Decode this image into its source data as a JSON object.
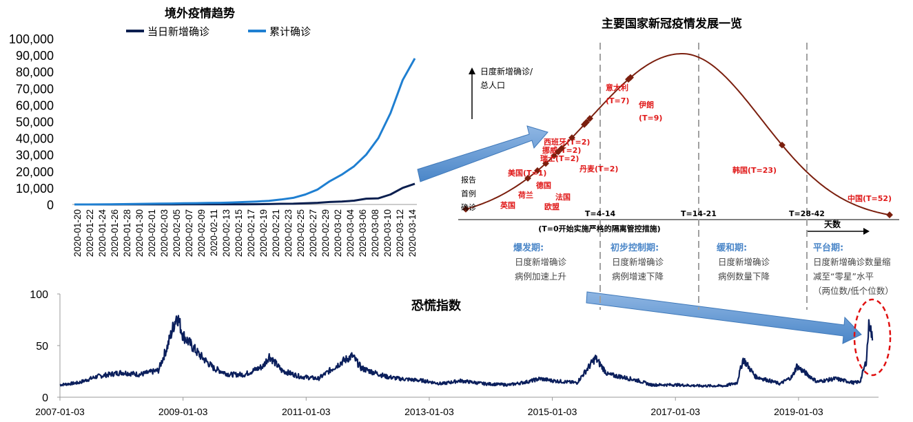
{
  "chart_data": [
    {
      "type": "line",
      "title": "境外疫情趋势",
      "legend_position": "top",
      "ylim": [
        0,
        100000
      ],
      "yticks": [
        "100,000",
        "90,000",
        "80,000",
        "70,000",
        "60,000",
        "50,000",
        "40,000",
        "30,000",
        "20,000",
        "10,000",
        "0"
      ],
      "xticks": [
        "2020-01-20",
        "2020-01-22",
        "2020-01-24",
        "2020-01-26",
        "2020-01-28",
        "2020-01-30",
        "2020-02-01",
        "2020-02-03",
        "2020-02-05",
        "2020-02-07",
        "2020-02-09",
        "2020-02-11",
        "2020-02-13",
        "2020-02-15",
        "2020-02-17",
        "2020-02-19",
        "2020-02-21",
        "2020-02-23",
        "2020-02-25",
        "2020-02-27",
        "2020-02-29",
        "2020-03-02",
        "2020-03-04",
        "2020-03-06",
        "2020-03-08",
        "2020-03-10",
        "2020-03-12",
        "2020-03-14"
      ],
      "x": [
        "2020-01-20",
        "2020-01-22",
        "2020-01-24",
        "2020-01-26",
        "2020-01-28",
        "2020-01-30",
        "2020-02-01",
        "2020-02-03",
        "2020-02-05",
        "2020-02-07",
        "2020-02-09",
        "2020-02-11",
        "2020-02-13",
        "2020-02-15",
        "2020-02-17",
        "2020-02-19",
        "2020-02-21",
        "2020-02-23",
        "2020-02-25",
        "2020-02-27",
        "2020-02-29",
        "2020-03-02",
        "2020-03-04",
        "2020-03-06",
        "2020-03-08",
        "2020-03-10",
        "2020-03-12",
        "2020-03-14",
        "2020-03-15"
      ],
      "series": [
        {
          "name": "当日新增确诊",
          "color": "#0b1f4f",
          "values": [
            0,
            5,
            10,
            20,
            30,
            40,
            40,
            50,
            60,
            70,
            80,
            80,
            90,
            100,
            120,
            150,
            250,
            400,
            450,
            700,
            1000,
            1500,
            1800,
            2300,
            3500,
            3700,
            6000,
            10000,
            12500
          ]
        },
        {
          "name": "累计确诊",
          "color": "#1f7fd1",
          "values": [
            0,
            20,
            60,
            100,
            200,
            300,
            400,
            500,
            600,
            700,
            800,
            900,
            1000,
            1200,
            1500,
            1800,
            2200,
            3000,
            4000,
            6000,
            9000,
            14000,
            18000,
            23000,
            30000,
            40000,
            55000,
            75000,
            88000
          ]
        }
      ]
    },
    {
      "type": "line",
      "title": "主要国家新冠疫情发展一览",
      "ylabel": "日度新增确诊/\n总人口",
      "xlabel_arrow": "天数",
      "x_axis_note": "(T=0开始实施严格的隔离管控措施)",
      "start_label": "报告\n首例\n确诊",
      "boundaries": [
        "T=4-14",
        "T=14-21",
        "T=28-42"
      ],
      "color": "#7b1f0e",
      "countries": [
        "英国",
        "荷兰",
        "德国",
        "美国(T=1)",
        "瑞士(T=2)",
        "挪威(T=2)",
        "西班牙(T=2)",
        "法国",
        "欧盟",
        "丹麦(T=2)",
        "意大利\n(T=7)",
        "伊朗\n(T=9)",
        "韩国(T=23)",
        "中国(T=52)"
      ],
      "phases": [
        {
          "name": "爆发期:",
          "desc": "日度新增确诊\n病例加速上升"
        },
        {
          "name": "初步控制期:",
          "desc": "日度新增确诊\n病例增速下降"
        },
        {
          "name": "缓和期:",
          "desc": "日度新增确诊\n病例数量下降"
        },
        {
          "name": "平台期:",
          "desc": "日度新增确诊数量缩\n减至“零星”水平\n（两位数/低个位数）"
        }
      ]
    },
    {
      "type": "line",
      "title": "恐慌指数",
      "color": "#0b1f5c",
      "ylim": [
        0,
        100
      ],
      "yticks": [
        "100",
        "50",
        "0"
      ],
      "xticks": [
        "2007-01-03",
        "2009-01-03",
        "2011-01-03",
        "2013-01-03",
        "2015-01-03",
        "2017-01-03",
        "2019-01-03"
      ],
      "x_years": [
        2007.0,
        2007.3,
        2007.6,
        2008.0,
        2008.3,
        2008.6,
        2008.75,
        2008.9,
        2009.0,
        2009.25,
        2009.5,
        2009.75,
        2010.0,
        2010.3,
        2010.4,
        2010.6,
        2010.9,
        2011.2,
        2011.6,
        2011.75,
        2011.9,
        2012.3,
        2012.5,
        2012.9,
        2013.2,
        2013.5,
        2013.9,
        2014.3,
        2014.6,
        2014.8,
        2015.0,
        2015.4,
        2015.6,
        2015.7,
        2015.9,
        2016.1,
        2016.4,
        2016.6,
        2017.0,
        2017.4,
        2017.8,
        2018.0,
        2018.1,
        2018.3,
        2018.7,
        2018.9,
        2018.97,
        2019.3,
        2019.6,
        2019.9,
        2020.0,
        2020.1,
        2020.15,
        2020.2
      ],
      "values": [
        12,
        14,
        20,
        24,
        22,
        26,
        50,
        80,
        60,
        42,
        28,
        22,
        22,
        30,
        40,
        26,
        20,
        18,
        35,
        40,
        28,
        20,
        18,
        16,
        13,
        16,
        13,
        12,
        15,
        18,
        16,
        14,
        30,
        38,
        22,
        20,
        16,
        12,
        12,
        11,
        11,
        14,
        37,
        20,
        13,
        20,
        30,
        15,
        18,
        14,
        15,
        35,
        75,
        55
      ],
      "annotation": "spike-circle"
    }
  ]
}
